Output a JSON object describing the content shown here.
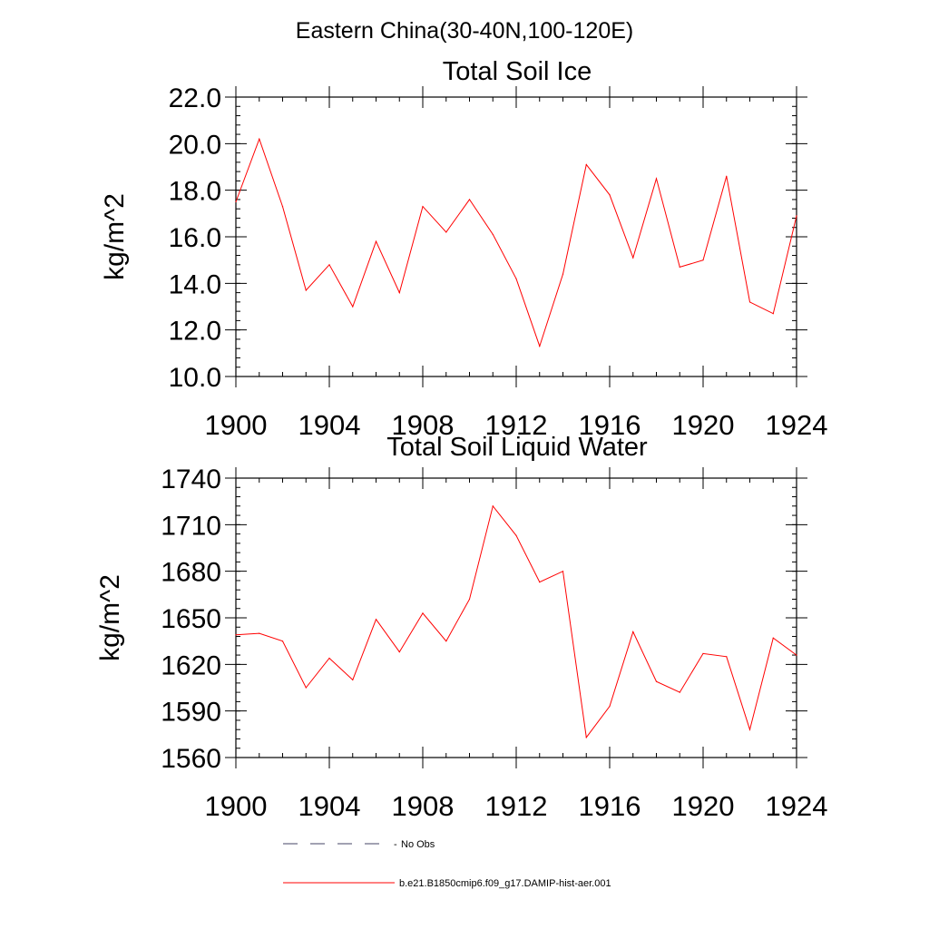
{
  "figure": {
    "title": "Eastern China(30-40N,100-120E)"
  },
  "chart_data": [
    {
      "type": "line",
      "title": "Total Soil Ice",
      "xlabel": "",
      "ylabel": "kg/m^2",
      "xlim": [
        1900,
        1924
      ],
      "ylim": [
        10.0,
        22.0
      ],
      "x_ticks": [
        1900,
        1904,
        1908,
        1912,
        1916,
        1920,
        1924
      ],
      "x_tick_labels": [
        "1900",
        "1904",
        "1908",
        "1912",
        "1916",
        "1920",
        "1924"
      ],
      "y_ticks": [
        10.0,
        12.0,
        14.0,
        16.0,
        18.0,
        20.0,
        22.0
      ],
      "y_tick_labels": [
        "10.0",
        "12.0",
        "14.0",
        "16.0",
        "18.0",
        "20.0",
        "22.0"
      ],
      "x_minor_step": 1,
      "y_minor_step": 0.4,
      "x": [
        1900,
        1901,
        1902,
        1903,
        1904,
        1905,
        1906,
        1907,
        1908,
        1909,
        1910,
        1911,
        1912,
        1913,
        1914,
        1915,
        1916,
        1917,
        1918,
        1919,
        1920,
        1921,
        1922,
        1923,
        1924
      ],
      "series": [
        {
          "name": "b.e21.B1850cmip6.f09_g17.DAMIP-hist-aer.001",
          "color": "#ff0000",
          "values": [
            17.5,
            20.2,
            17.3,
            13.7,
            14.8,
            13.0,
            15.8,
            13.6,
            17.3,
            16.2,
            17.6,
            16.1,
            14.2,
            11.3,
            14.4,
            19.1,
            17.8,
            15.1,
            18.5,
            14.7,
            15.0,
            18.6,
            13.2,
            12.7,
            16.9
          ]
        }
      ]
    },
    {
      "type": "line",
      "title": "Total Soil Liquid Water",
      "xlabel": "",
      "ylabel": "kg/m^2",
      "xlim": [
        1900,
        1924
      ],
      "ylim": [
        1560,
        1740
      ],
      "x_ticks": [
        1900,
        1904,
        1908,
        1912,
        1916,
        1920,
        1924
      ],
      "x_tick_labels": [
        "1900",
        "1904",
        "1908",
        "1912",
        "1916",
        "1920",
        "1924"
      ],
      "y_ticks": [
        1560,
        1590,
        1620,
        1650,
        1680,
        1710,
        1740
      ],
      "y_tick_labels": [
        "1560",
        "1590",
        "1620",
        "1650",
        "1680",
        "1710",
        "1740"
      ],
      "x_minor_step": 1,
      "y_minor_step": 6,
      "x": [
        1900,
        1901,
        1902,
        1903,
        1904,
        1905,
        1906,
        1907,
        1908,
        1909,
        1910,
        1911,
        1912,
        1913,
        1914,
        1915,
        1916,
        1917,
        1918,
        1919,
        1920,
        1921,
        1922,
        1923,
        1924
      ],
      "series": [
        {
          "name": "b.e21.B1850cmip6.f09_g17.DAMIP-hist-aer.001",
          "color": "#ff0000",
          "values": [
            1639,
            1640,
            1635,
            1605,
            1624,
            1610,
            1649,
            1628,
            1653,
            1635,
            1662,
            1722,
            1703,
            1673,
            1680,
            1573,
            1593,
            1641,
            1609,
            1602,
            1627,
            1625,
            1578,
            1637,
            1626
          ]
        }
      ]
    }
  ],
  "legend": [
    {
      "label": "No Obs",
      "style": "dashed",
      "color": "#444466"
    },
    {
      "label": "b.e21.B1850cmip6.f09_g17.DAMIP-hist-aer.001",
      "style": "solid",
      "color": "#ff0000"
    }
  ]
}
